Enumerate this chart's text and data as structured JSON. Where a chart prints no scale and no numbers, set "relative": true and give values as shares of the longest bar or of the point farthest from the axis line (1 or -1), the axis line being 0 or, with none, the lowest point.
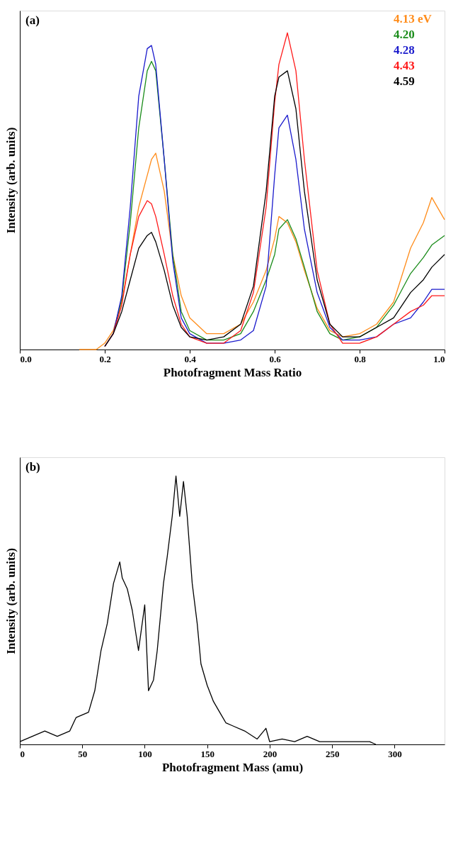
{
  "chart_data": [
    {
      "type": "line",
      "relative": true,
      "xlabel": "Photofragment Mass Ratio",
      "ylabel": "Intensity (arb. units)",
      "xlim": [
        0,
        1
      ],
      "xticks": [
        {
          "value": 0,
          "label": "0.0"
        },
        0.2,
        0.4,
        0.6,
        0.8,
        {
          "value": 1,
          "label": "1.0"
        }
      ],
      "legend": "top right",
      "grid": false,
      "marker": "none",
      "line_style": "solid",
      "tick_labels": "x",
      "annotations": [
        "(a)"
      ],
      "x": [
        0.14,
        0.18,
        0.2,
        0.22,
        0.24,
        0.26,
        0.28,
        0.3,
        0.31,
        0.32,
        0.34,
        0.36,
        0.38,
        0.4,
        0.44,
        0.48,
        0.52,
        0.55,
        0.58,
        0.6,
        0.61,
        0.63,
        0.65,
        0.67,
        0.7,
        0.73,
        0.76,
        0.8,
        0.84,
        0.88,
        0.92,
        0.95,
        0.97,
        1.0
      ],
      "series": [
        {
          "name": "4.13 eV",
          "color": "#ff8c1a",
          "values": [
            0,
            0,
            0.02,
            0.06,
            0.15,
            0.3,
            0.45,
            0.55,
            0.6,
            0.62,
            0.5,
            0.3,
            0.17,
            0.1,
            0.05,
            0.05,
            0.08,
            0.15,
            0.25,
            0.35,
            0.42,
            0.4,
            0.34,
            0.25,
            0.13,
            0.06,
            0.04,
            0.05,
            0.08,
            0.15,
            0.32,
            0.4,
            0.48,
            0.41
          ]
        },
        {
          "name": "4.20",
          "color": "#1a8c1a",
          "values": [
            null,
            null,
            null,
            0.05,
            0.16,
            0.4,
            0.7,
            0.88,
            0.91,
            0.88,
            0.6,
            0.3,
            0.12,
            0.06,
            0.03,
            0.03,
            0.05,
            0.12,
            0.22,
            0.3,
            0.38,
            0.41,
            0.35,
            0.26,
            0.12,
            0.05,
            0.03,
            0.04,
            0.07,
            0.14,
            0.24,
            0.29,
            0.33,
            0.36
          ]
        },
        {
          "name": "4.28",
          "color": "#1a1acc",
          "values": [
            null,
            null,
            0.01,
            0.05,
            0.17,
            0.45,
            0.8,
            0.95,
            0.96,
            0.9,
            0.6,
            0.28,
            0.1,
            0.05,
            0.02,
            0.02,
            0.03,
            0.06,
            0.2,
            0.55,
            0.7,
            0.74,
            0.6,
            0.38,
            0.18,
            0.07,
            0.03,
            0.03,
            0.04,
            0.08,
            0.1,
            0.15,
            0.19,
            0.19
          ]
        },
        {
          "name": "4.43",
          "color": "#ff1a1a",
          "values": [
            null,
            null,
            0.01,
            0.05,
            0.14,
            0.3,
            0.42,
            0.47,
            0.46,
            0.42,
            0.3,
            0.17,
            0.08,
            0.04,
            0.02,
            0.02,
            0.06,
            0.18,
            0.45,
            0.78,
            0.9,
            1.0,
            0.88,
            0.6,
            0.25,
            0.08,
            0.02,
            0.02,
            0.04,
            0.08,
            0.12,
            0.14,
            0.17,
            0.17
          ]
        },
        {
          "name": "4.59",
          "color": "#000000",
          "values": [
            null,
            null,
            0.01,
            0.05,
            0.12,
            0.22,
            0.32,
            0.36,
            0.37,
            0.34,
            0.25,
            0.14,
            0.07,
            0.04,
            0.03,
            0.04,
            0.08,
            0.2,
            0.5,
            0.8,
            0.86,
            0.88,
            0.76,
            0.5,
            0.22,
            0.08,
            0.04,
            0.04,
            0.07,
            0.1,
            0.18,
            0.22,
            0.26,
            0.3
          ]
        }
      ]
    },
    {
      "type": "line",
      "relative": true,
      "xlabel": "Photofragment Mass (amu)",
      "ylabel": "Intensity (arb. units)",
      "xlim": [
        0,
        340
      ],
      "xticks": [
        0,
        50,
        100,
        150,
        200,
        250,
        300
      ],
      "legend": false,
      "grid": false,
      "marker": "none",
      "line_style": "solid",
      "tick_labels": "x",
      "annotations": [
        "(b)"
      ],
      "x": [
        0,
        10,
        20,
        30,
        40,
        45,
        55,
        60,
        65,
        70,
        75,
        80,
        82,
        86,
        90,
        95,
        100,
        103,
        107,
        110,
        115,
        118,
        122,
        125,
        128,
        131,
        134,
        138,
        142,
        145,
        150,
        155,
        160,
        165,
        170,
        180,
        190,
        197,
        200,
        210,
        220,
        230,
        240,
        250,
        265,
        280,
        285
      ],
      "series": [
        {
          "color": "#000000",
          "values": [
            0.01,
            0.03,
            0.05,
            0.03,
            0.05,
            0.1,
            0.12,
            0.2,
            0.35,
            0.45,
            0.6,
            0.68,
            0.62,
            0.58,
            0.5,
            0.35,
            0.52,
            0.2,
            0.24,
            0.35,
            0.6,
            0.7,
            0.85,
            1.0,
            0.85,
            0.98,
            0.85,
            0.6,
            0.45,
            0.3,
            0.22,
            0.16,
            0.12,
            0.08,
            0.07,
            0.05,
            0.02,
            0.06,
            0.01,
            0.02,
            0.01,
            0.03,
            0.01,
            0.01,
            0.01,
            0.01,
            0
          ]
        }
      ]
    }
  ]
}
